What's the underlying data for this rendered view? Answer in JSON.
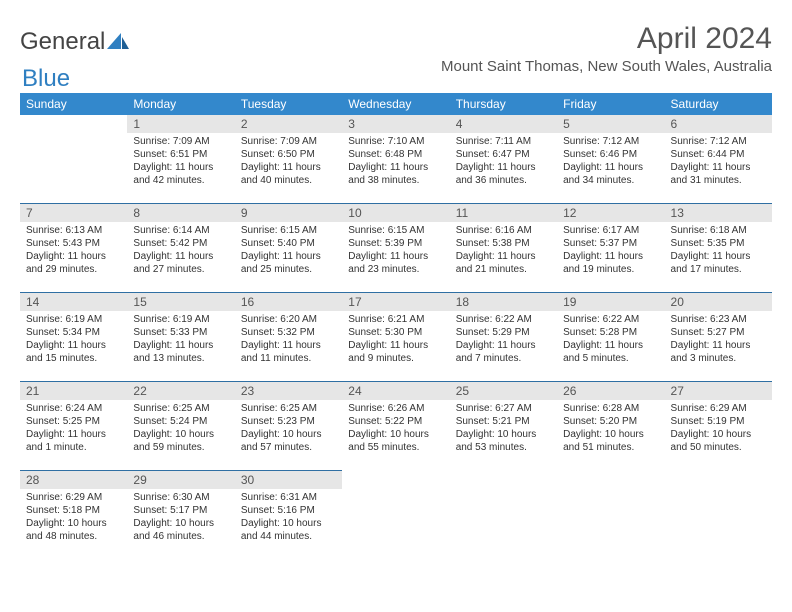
{
  "logo": {
    "text_general": "General",
    "text_blue": "Blue"
  },
  "title": "April 2024",
  "location": "Mount Saint Thomas, New South Wales, Australia",
  "colors": {
    "header_bg": "#3388cc",
    "header_text": "#ffffff",
    "daynum_bg": "#e6e6e6",
    "row_border": "#2f6fa3",
    "body_text": "#333333",
    "title_text": "#555555",
    "logo_grey": "#444444",
    "logo_blue": "#2f7fc1"
  },
  "day_headers": [
    "Sunday",
    "Monday",
    "Tuesday",
    "Wednesday",
    "Thursday",
    "Friday",
    "Saturday"
  ],
  "weeks": [
    [
      {
        "empty": true
      },
      {
        "day": "1",
        "sunrise": "Sunrise: 7:09 AM",
        "sunset": "Sunset: 6:51 PM",
        "daylight": "Daylight: 11 hours and 42 minutes."
      },
      {
        "day": "2",
        "sunrise": "Sunrise: 7:09 AM",
        "sunset": "Sunset: 6:50 PM",
        "daylight": "Daylight: 11 hours and 40 minutes."
      },
      {
        "day": "3",
        "sunrise": "Sunrise: 7:10 AM",
        "sunset": "Sunset: 6:48 PM",
        "daylight": "Daylight: 11 hours and 38 minutes."
      },
      {
        "day": "4",
        "sunrise": "Sunrise: 7:11 AM",
        "sunset": "Sunset: 6:47 PM",
        "daylight": "Daylight: 11 hours and 36 minutes."
      },
      {
        "day": "5",
        "sunrise": "Sunrise: 7:12 AM",
        "sunset": "Sunset: 6:46 PM",
        "daylight": "Daylight: 11 hours and 34 minutes."
      },
      {
        "day": "6",
        "sunrise": "Sunrise: 7:12 AM",
        "sunset": "Sunset: 6:44 PM",
        "daylight": "Daylight: 11 hours and 31 minutes."
      }
    ],
    [
      {
        "day": "7",
        "sunrise": "Sunrise: 6:13 AM",
        "sunset": "Sunset: 5:43 PM",
        "daylight": "Daylight: 11 hours and 29 minutes."
      },
      {
        "day": "8",
        "sunrise": "Sunrise: 6:14 AM",
        "sunset": "Sunset: 5:42 PM",
        "daylight": "Daylight: 11 hours and 27 minutes."
      },
      {
        "day": "9",
        "sunrise": "Sunrise: 6:15 AM",
        "sunset": "Sunset: 5:40 PM",
        "daylight": "Daylight: 11 hours and 25 minutes."
      },
      {
        "day": "10",
        "sunrise": "Sunrise: 6:15 AM",
        "sunset": "Sunset: 5:39 PM",
        "daylight": "Daylight: 11 hours and 23 minutes."
      },
      {
        "day": "11",
        "sunrise": "Sunrise: 6:16 AM",
        "sunset": "Sunset: 5:38 PM",
        "daylight": "Daylight: 11 hours and 21 minutes."
      },
      {
        "day": "12",
        "sunrise": "Sunrise: 6:17 AM",
        "sunset": "Sunset: 5:37 PM",
        "daylight": "Daylight: 11 hours and 19 minutes."
      },
      {
        "day": "13",
        "sunrise": "Sunrise: 6:18 AM",
        "sunset": "Sunset: 5:35 PM",
        "daylight": "Daylight: 11 hours and 17 minutes."
      }
    ],
    [
      {
        "day": "14",
        "sunrise": "Sunrise: 6:19 AM",
        "sunset": "Sunset: 5:34 PM",
        "daylight": "Daylight: 11 hours and 15 minutes."
      },
      {
        "day": "15",
        "sunrise": "Sunrise: 6:19 AM",
        "sunset": "Sunset: 5:33 PM",
        "daylight": "Daylight: 11 hours and 13 minutes."
      },
      {
        "day": "16",
        "sunrise": "Sunrise: 6:20 AM",
        "sunset": "Sunset: 5:32 PM",
        "daylight": "Daylight: 11 hours and 11 minutes."
      },
      {
        "day": "17",
        "sunrise": "Sunrise: 6:21 AM",
        "sunset": "Sunset: 5:30 PM",
        "daylight": "Daylight: 11 hours and 9 minutes."
      },
      {
        "day": "18",
        "sunrise": "Sunrise: 6:22 AM",
        "sunset": "Sunset: 5:29 PM",
        "daylight": "Daylight: 11 hours and 7 minutes."
      },
      {
        "day": "19",
        "sunrise": "Sunrise: 6:22 AM",
        "sunset": "Sunset: 5:28 PM",
        "daylight": "Daylight: 11 hours and 5 minutes."
      },
      {
        "day": "20",
        "sunrise": "Sunrise: 6:23 AM",
        "sunset": "Sunset: 5:27 PM",
        "daylight": "Daylight: 11 hours and 3 minutes."
      }
    ],
    [
      {
        "day": "21",
        "sunrise": "Sunrise: 6:24 AM",
        "sunset": "Sunset: 5:25 PM",
        "daylight": "Daylight: 11 hours and 1 minute."
      },
      {
        "day": "22",
        "sunrise": "Sunrise: 6:25 AM",
        "sunset": "Sunset: 5:24 PM",
        "daylight": "Daylight: 10 hours and 59 minutes."
      },
      {
        "day": "23",
        "sunrise": "Sunrise: 6:25 AM",
        "sunset": "Sunset: 5:23 PM",
        "daylight": "Daylight: 10 hours and 57 minutes."
      },
      {
        "day": "24",
        "sunrise": "Sunrise: 6:26 AM",
        "sunset": "Sunset: 5:22 PM",
        "daylight": "Daylight: 10 hours and 55 minutes."
      },
      {
        "day": "25",
        "sunrise": "Sunrise: 6:27 AM",
        "sunset": "Sunset: 5:21 PM",
        "daylight": "Daylight: 10 hours and 53 minutes."
      },
      {
        "day": "26",
        "sunrise": "Sunrise: 6:28 AM",
        "sunset": "Sunset: 5:20 PM",
        "daylight": "Daylight: 10 hours and 51 minutes."
      },
      {
        "day": "27",
        "sunrise": "Sunrise: 6:29 AM",
        "sunset": "Sunset: 5:19 PM",
        "daylight": "Daylight: 10 hours and 50 minutes."
      }
    ],
    [
      {
        "day": "28",
        "sunrise": "Sunrise: 6:29 AM",
        "sunset": "Sunset: 5:18 PM",
        "daylight": "Daylight: 10 hours and 48 minutes."
      },
      {
        "day": "29",
        "sunrise": "Sunrise: 6:30 AM",
        "sunset": "Sunset: 5:17 PM",
        "daylight": "Daylight: 10 hours and 46 minutes."
      },
      {
        "day": "30",
        "sunrise": "Sunrise: 6:31 AM",
        "sunset": "Sunset: 5:16 PM",
        "daylight": "Daylight: 10 hours and 44 minutes."
      },
      {
        "empty": true
      },
      {
        "empty": true
      },
      {
        "empty": true
      },
      {
        "empty": true
      }
    ]
  ]
}
